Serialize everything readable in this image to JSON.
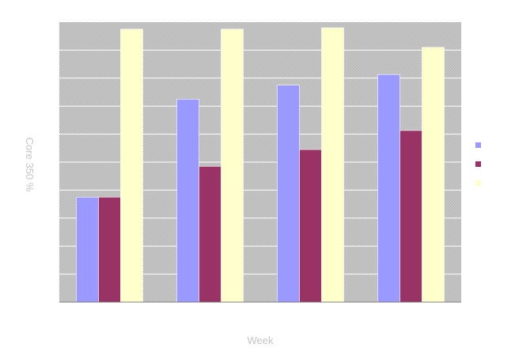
{
  "chart_data": {
    "type": "bar",
    "title": "",
    "xlabel": "Week",
    "ylabel": "Core 350 %",
    "categories": [
      "",
      "",
      "",
      ""
    ],
    "ylim": [
      0,
      100
    ],
    "grid": true,
    "legend_placement": "right",
    "series": [
      {
        "values": [
          37.5,
          72.5,
          77.5,
          81.3
        ],
        "color": "#9999ff"
      },
      {
        "values": [
          37.5,
          48.5,
          54.5,
          61.3
        ],
        "color": "#993366"
      },
      {
        "values": [
          97.5,
          97.5,
          98.0,
          91.0
        ],
        "color": "#ffffcc"
      }
    ],
    "plot_background": "#c0c0c0"
  }
}
